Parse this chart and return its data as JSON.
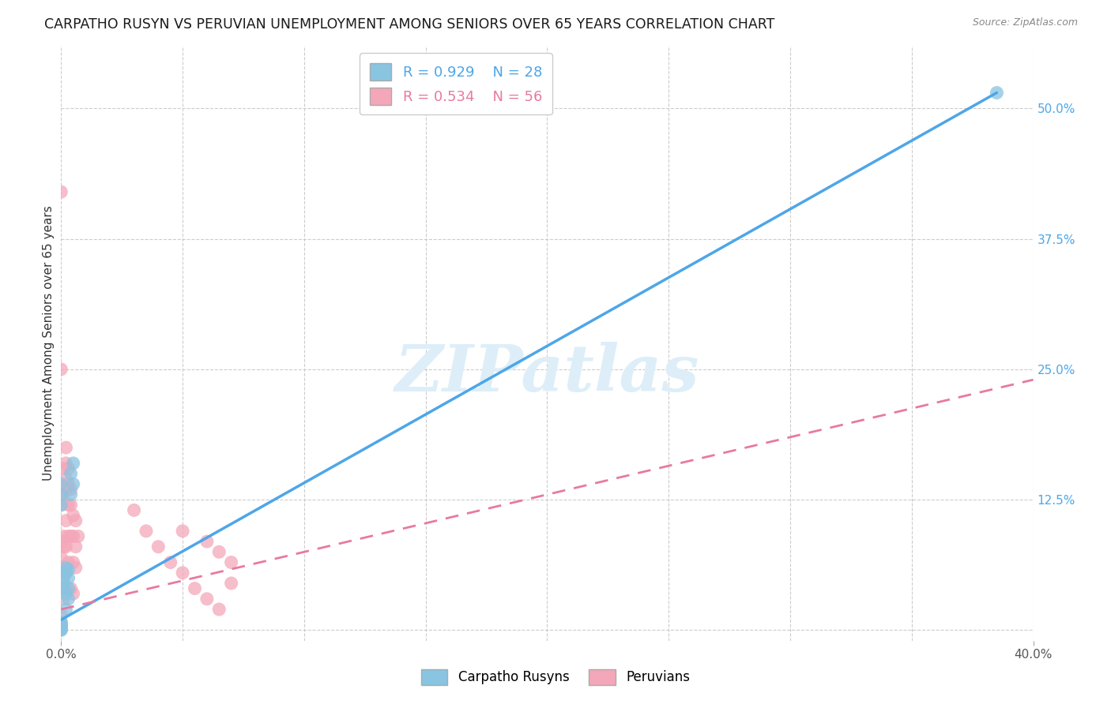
{
  "title": "CARPATHO RUSYN VS PERUVIAN UNEMPLOYMENT AMONG SENIORS OVER 65 YEARS CORRELATION CHART",
  "source": "Source: ZipAtlas.com",
  "ylabel": "Unemployment Among Seniors over 65 years",
  "xlim": [
    0,
    0.4
  ],
  "ylim": [
    -0.01,
    0.56
  ],
  "ytick_right_labels": [
    "50.0%",
    "37.5%",
    "25.0%",
    "12.5%"
  ],
  "ytick_right_values": [
    0.5,
    0.375,
    0.25,
    0.125
  ],
  "blue_R": 0.929,
  "blue_N": 28,
  "pink_R": 0.534,
  "pink_N": 56,
  "blue_color": "#89c4e1",
  "pink_color": "#f4a7b9",
  "blue_line_color": "#4da6e8",
  "pink_line_color": "#e87a9f",
  "grid_color": "#cccccc",
  "watermark_color": "#ddeef8",
  "blue_line_x0": 0.0,
  "blue_line_y0": 0.01,
  "blue_line_x1": 0.385,
  "blue_line_y1": 0.515,
  "pink_line_x0": 0.0,
  "pink_line_y0": 0.02,
  "pink_line_x1": 0.4,
  "pink_line_y1": 0.24,
  "blue_scatter_x": [
    0.0,
    0.0,
    0.0,
    0.001,
    0.001,
    0.001,
    0.001,
    0.002,
    0.002,
    0.002,
    0.002,
    0.003,
    0.003,
    0.003,
    0.003,
    0.004,
    0.004,
    0.005,
    0.005,
    0.0,
    0.0,
    0.0,
    0.0,
    0.0,
    0.0,
    0.385,
    0.0,
    0.0
  ],
  "blue_scatter_y": [
    0.14,
    0.13,
    0.12,
    0.055,
    0.05,
    0.045,
    0.04,
    0.06,
    0.055,
    0.035,
    0.02,
    0.058,
    0.05,
    0.04,
    0.03,
    0.15,
    0.13,
    0.16,
    0.14,
    0.005,
    0.004,
    0.003,
    0.002,
    0.001,
    0.0,
    0.515,
    0.007,
    0.008
  ],
  "pink_scatter_x": [
    0.0,
    0.0,
    0.0,
    0.0,
    0.0,
    0.0,
    0.0,
    0.0,
    0.0,
    0.001,
    0.001,
    0.001,
    0.001,
    0.001,
    0.001,
    0.002,
    0.002,
    0.002,
    0.002,
    0.002,
    0.002,
    0.002,
    0.003,
    0.003,
    0.003,
    0.003,
    0.003,
    0.004,
    0.004,
    0.004,
    0.004,
    0.005,
    0.005,
    0.005,
    0.005,
    0.006,
    0.006,
    0.006,
    0.007,
    0.05,
    0.06,
    0.065,
    0.07,
    0.07,
    0.03,
    0.035,
    0.04,
    0.045,
    0.05,
    0.055,
    0.06,
    0.065,
    0.0,
    0.0,
    0.0,
    0.0
  ],
  "pink_scatter_y": [
    0.42,
    0.25,
    0.13,
    0.12,
    0.085,
    0.07,
    0.06,
    0.04,
    0.015,
    0.155,
    0.13,
    0.09,
    0.08,
    0.055,
    0.03,
    0.175,
    0.16,
    0.145,
    0.135,
    0.105,
    0.08,
    0.055,
    0.155,
    0.14,
    0.12,
    0.09,
    0.065,
    0.135,
    0.12,
    0.09,
    0.04,
    0.11,
    0.09,
    0.065,
    0.035,
    0.105,
    0.08,
    0.06,
    0.09,
    0.095,
    0.085,
    0.075,
    0.065,
    0.045,
    0.115,
    0.095,
    0.08,
    0.065,
    0.055,
    0.04,
    0.03,
    0.02,
    0.005,
    0.003,
    0.002,
    0.001
  ]
}
